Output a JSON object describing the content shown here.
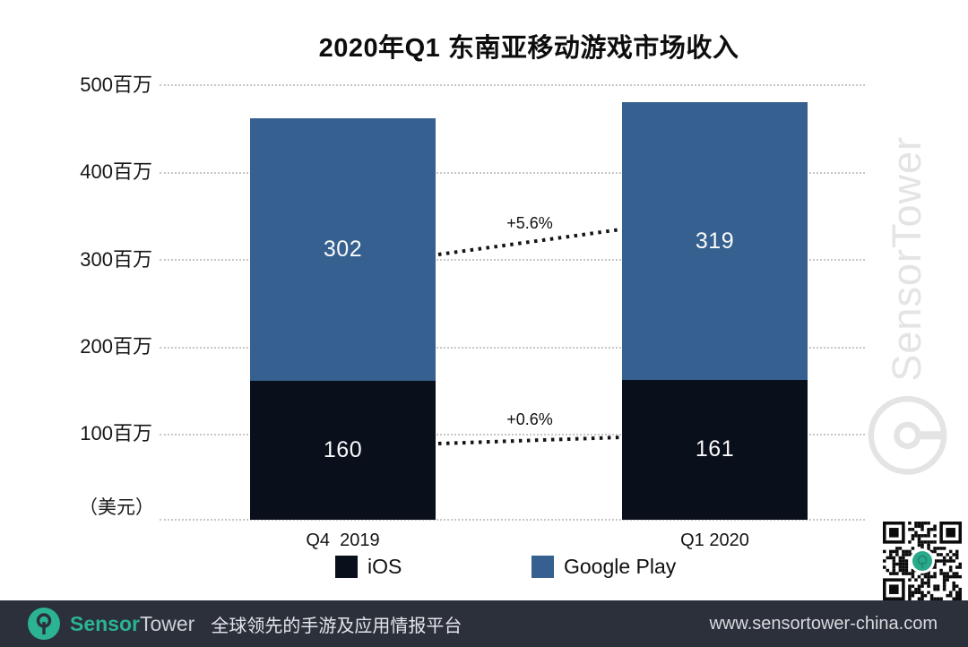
{
  "title": "2020年Q1 东南亚移动游戏市场收入",
  "chart_data": {
    "type": "bar",
    "stacked": true,
    "title": "2020年Q1 东南亚移动游戏市场收入",
    "categories": [
      "Q4  2019",
      "Q1 2020"
    ],
    "series": [
      {
        "name": "iOS",
        "color": "#0a0f1c",
        "values": [
          160,
          161
        ]
      },
      {
        "name": "Google Play",
        "color": "#35608f",
        "values": [
          302,
          319
        ]
      }
    ],
    "y_ticks": [
      "500百万",
      "400百万",
      "300百万",
      "200百万",
      "100百万"
    ],
    "ylim": [
      0,
      500
    ],
    "unit_label": "（美元）",
    "grid": "dotted horizontal",
    "legend_position": "bottom",
    "annotations": [
      {
        "label": "+5.6%",
        "series": "Google Play",
        "change_from": 302,
        "change_to": 319
      },
      {
        "label": "+0.6%",
        "series": "iOS",
        "change_from": 160,
        "change_to": 161
      }
    ]
  },
  "watermark": {
    "text": "SensorTower"
  },
  "footer": {
    "brand_sensor": "Sensor",
    "brand_tower": "Tower",
    "tagline": "全球领先的手游及应用情报平台",
    "website": "www.sensortower-china.com"
  },
  "colors": {
    "ios": "#0a0f1c",
    "google_play": "#35608f",
    "teal": "#2bb394",
    "footer_bg": "#2b303a",
    "watermark": "#e4e4e4"
  }
}
